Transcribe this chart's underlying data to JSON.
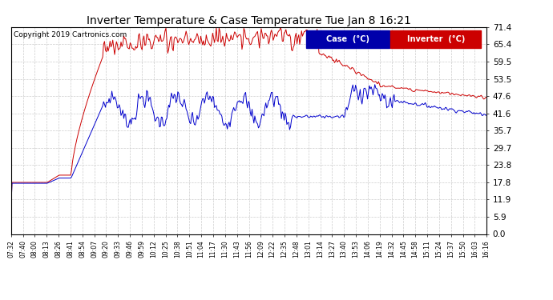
{
  "title": "Inverter Temperature & Case Temperature Tue Jan 8 16:21",
  "copyright": "Copyright 2019 Cartronics.com",
  "background_color": "#ffffff",
  "plot_bg_color": "#ffffff",
  "grid_color": "#cccccc",
  "line_red_color": "#cc0000",
  "line_blue_color": "#0000cc",
  "yticks": [
    0.0,
    5.9,
    11.9,
    17.8,
    23.8,
    29.7,
    35.7,
    41.6,
    47.6,
    53.5,
    59.5,
    65.4,
    71.4
  ],
  "ylim": [
    0.0,
    71.4
  ],
  "legend_case_label": "Case  (°C)",
  "legend_inverter_label": "Inverter  (°C)",
  "total_points": 520,
  "xtick_labels": [
    "07:32",
    "07:40",
    "08:00",
    "08:13",
    "08:26",
    "08:41",
    "08:54",
    "09:07",
    "09:20",
    "09:33",
    "09:46",
    "09:59",
    "10:12",
    "10:25",
    "10:38",
    "10:51",
    "11:04",
    "11:17",
    "11:30",
    "11:43",
    "11:56",
    "12:09",
    "12:22",
    "12:35",
    "12:48",
    "13:01",
    "13:14",
    "13:27",
    "13:40",
    "13:53",
    "14:06",
    "14:19",
    "14:32",
    "14:45",
    "14:58",
    "15:11",
    "15:24",
    "15:37",
    "15:50",
    "16:03",
    "16:16"
  ]
}
